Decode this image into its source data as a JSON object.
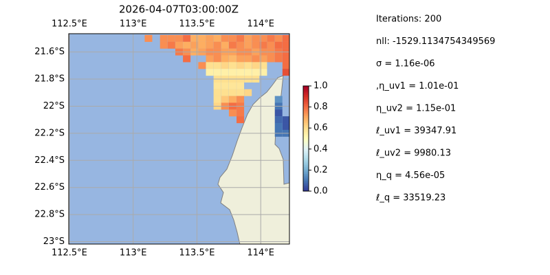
{
  "chart_data": {
    "type": "map",
    "title": "2026-04-07T03:00:00Z",
    "xlim": [
      112.495,
      114.225
    ],
    "ylim": [
      -21.465,
      -23.0175
    ],
    "xticks": [
      {
        "value": 112.5,
        "label": "112.5°E"
      },
      {
        "value": 113,
        "label": "113°E"
      },
      {
        "value": 113.5,
        "label": "113.5°E"
      },
      {
        "value": 114,
        "label": "114°E"
      }
    ],
    "yticks": [
      {
        "value": -21.6,
        "label": "21.6°S"
      },
      {
        "value": -21.8,
        "label": "21.8°S"
      },
      {
        "value": -22,
        "label": "22°S"
      },
      {
        "value": -22.2,
        "label": "22.2°S"
      },
      {
        "value": -22.4,
        "label": "22.4°S"
      },
      {
        "value": -22.6,
        "label": "22.6°S"
      },
      {
        "value": -22.8,
        "label": "22.8°S"
      },
      {
        "value": -23,
        "label": "23°S"
      }
    ],
    "grid": true,
    "colormap": [
      "#313695",
      "#4575b4",
      "#74add1",
      "#abd9e9",
      "#e0f3f8",
      "#ffffbf",
      "#fee090",
      "#fdae61",
      "#f46d43",
      "#d73027",
      "#a50026"
    ],
    "clim": [
      0,
      1
    ],
    "colorbar_ticks": [
      {
        "value": 0,
        "label": "0.0"
      },
      0.2,
      0.4,
      0.6,
      0.8,
      {
        "value": 1,
        "label": "1.0"
      }
    ],
    "cell_lons": [
      113.12,
      113.18,
      113.24,
      113.3,
      113.36,
      113.42,
      113.48,
      113.54,
      113.6,
      113.66,
      113.72,
      113.78,
      113.84,
      113.9,
      113.96,
      114.02,
      114.08,
      114.14,
      114.2
    ],
    "cell_lats": [
      -21.5,
      -21.55,
      -21.6,
      -21.65,
      -21.7,
      -21.75,
      -21.8,
      -21.85,
      -21.9,
      -21.95,
      -22.0,
      -22.05,
      -22.1,
      -22.15,
      -22.2
    ],
    "values": [
      [
        0.75,
        null,
        0.75,
        0.75,
        0.75,
        0.8,
        0.7,
        0.7,
        0.72,
        0.7,
        0.75,
        0.75,
        0.78,
        0.72,
        0.75,
        0.75,
        0.78,
        0.75,
        0.8
      ],
      [
        null,
        null,
        0.75,
        0.78,
        0.72,
        0.7,
        0.72,
        0.7,
        0.72,
        0.75,
        0.7,
        0.78,
        0.75,
        0.72,
        0.75,
        0.78,
        0.75,
        0.8,
        0.8
      ],
      [
        null,
        null,
        null,
        null,
        0.78,
        0.75,
        0.7,
        0.72,
        0.75,
        0.75,
        0.72,
        0.72,
        0.75,
        0.75,
        0.72,
        0.75,
        0.75,
        0.78,
        0.8
      ],
      [
        null,
        null,
        null,
        null,
        null,
        0.8,
        null,
        null,
        0.72,
        0.75,
        0.7,
        0.68,
        0.72,
        0.72,
        0.75,
        0.72,
        0.75,
        0.78,
        0.8
      ],
      [
        null,
        null,
        null,
        null,
        null,
        null,
        null,
        0.75,
        0.6,
        0.6,
        0.62,
        0.6,
        0.62,
        0.6,
        0.62,
        0.6,
        null,
        null,
        0.8
      ],
      [
        null,
        null,
        null,
        null,
        null,
        null,
        null,
        null,
        0.55,
        0.55,
        0.55,
        0.55,
        0.55,
        0.55,
        0.55,
        0.55,
        null,
        null,
        0.85
      ],
      [
        null,
        null,
        null,
        null,
        null,
        null,
        null,
        null,
        null,
        0.6,
        0.6,
        0.6,
        0.6,
        0.6,
        0.6,
        null,
        null,
        null,
        null
      ],
      [
        null,
        null,
        null,
        null,
        null,
        null,
        null,
        null,
        null,
        0.58,
        0.58,
        0.58,
        0.58,
        null,
        null,
        null,
        null,
        null,
        null
      ],
      [
        null,
        null,
        null,
        null,
        null,
        null,
        null,
        null,
        null,
        0.6,
        0.6,
        0.6,
        0.6,
        0.62,
        null,
        null,
        null,
        null,
        null
      ],
      [
        null,
        null,
        null,
        null,
        null,
        null,
        null,
        null,
        null,
        0.6,
        0.65,
        0.7,
        0.75,
        null,
        null,
        null,
        null,
        0.15,
        null
      ],
      [
        null,
        null,
        null,
        null,
        null,
        null,
        null,
        null,
        null,
        0.62,
        0.75,
        0.8,
        0.78,
        null,
        null,
        null,
        null,
        0.1,
        null
      ],
      [
        null,
        null,
        null,
        null,
        null,
        null,
        null,
        null,
        null,
        null,
        null,
        0.75,
        0.78,
        null,
        null,
        null,
        null,
        0.05,
        null
      ],
      [
        null,
        null,
        null,
        null,
        null,
        null,
        null,
        null,
        null,
        null,
        null,
        null,
        0.8,
        null,
        null,
        null,
        null,
        0.08,
        0.05
      ],
      [
        null,
        null,
        null,
        null,
        null,
        null,
        null,
        null,
        null,
        null,
        null,
        null,
        null,
        null,
        null,
        null,
        null,
        0.1,
        0.05
      ],
      [
        null,
        null,
        null,
        null,
        null,
        null,
        null,
        null,
        null,
        null,
        null,
        null,
        null,
        null,
        null,
        null,
        null,
        0.1,
        0.1
      ]
    ],
    "info": [
      "Iterations: 200",
      "nll: -1529.1134754349569",
      "σ = 1.16e-06",
      ",η_uv1 = 1.01e-01",
      "η_uv2 = 1.15e-01",
      "ℓ_uv1 = 39347.91",
      "ℓ_uv2 = 9980.13",
      "η_q = 4.56e-05",
      "ℓ_q = 33519.23"
    ]
  }
}
